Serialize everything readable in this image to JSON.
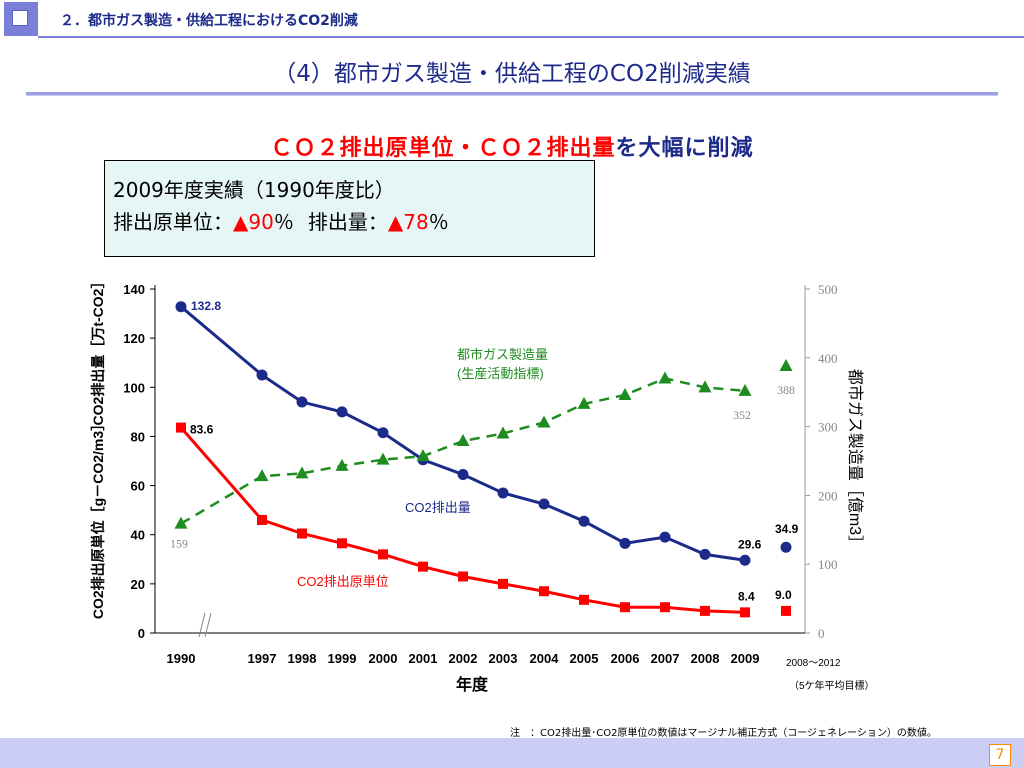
{
  "header": {
    "section_label": "２．都市ガス製造・供給工程におけるCO2削減",
    "title": "（4）都市ガス製造・供給工程のCO2削減実績"
  },
  "headline": {
    "red_text": "ＣＯ２排出原単位・ＣＯ２排出量",
    "blue_text": "を大幅に削減"
  },
  "result_box": {
    "line1": "2009年度実績（1990年度比）",
    "intensity_label": "排出原単位：",
    "intensity_mark": "▲",
    "intensity_value": "90",
    "percent1": "％",
    "emission_label": "排出量：",
    "emission_mark": "▲",
    "emission_value": "78",
    "percent2": "％"
  },
  "chart_data": {
    "type": "line",
    "x": [
      "1990",
      "1997",
      "1998",
      "1999",
      "2000",
      "2001",
      "2002",
      "2003",
      "2004",
      "2005",
      "2006",
      "2007",
      "2008",
      "2009"
    ],
    "xlabel": "年度",
    "ylabel_left_top": "CO2排出量［万t-CO2］",
    "ylabel_left_bottom": "CO2排出原単位［g－CO2/m3］",
    "ylabel_right": "都市ガス製造量［億m3］",
    "ylim_left": [
      0,
      140
    ],
    "ylim_right": [
      0,
      500
    ],
    "left_ticks": [
      "0",
      "20",
      "40",
      "60",
      "80",
      "100",
      "120",
      "140"
    ],
    "right_ticks": [
      "0",
      "100",
      "200",
      "300",
      "400",
      "500"
    ],
    "series": [
      {
        "name": "CO2排出量",
        "axis": "left",
        "color": "#1c2a8a",
        "values": [
          132.8,
          105,
          94,
          90,
          81.5,
          70.5,
          64.5,
          57,
          52.5,
          45.5,
          36.5,
          39,
          32,
          29.6
        ],
        "target": 34.9
      },
      {
        "name": "CO2排出原単位",
        "axis": "left",
        "color": "#ff0000",
        "values": [
          83.6,
          46,
          40.5,
          36.5,
          32,
          27,
          23,
          20,
          17,
          13.5,
          10.5,
          10.5,
          9,
          8.4
        ],
        "target": 9.0
      },
      {
        "name": "都市ガス製造量（生産活動指標）",
        "axis": "right",
        "color": "#1e8c1e",
        "values": [
          159,
          228,
          232,
          243,
          252,
          257,
          279,
          290,
          306,
          333,
          346,
          370,
          357,
          352
        ],
        "target": 388
      }
    ],
    "data_labels": {
      "emission_start": "132.8",
      "intensity_start": "83.6",
      "production_start": "159",
      "emission_end": "29.6",
      "emission_target": "34.9",
      "intensity_end": "8.4",
      "intensity_target": "9.0",
      "production_end": "352",
      "production_target": "388"
    },
    "legend_labels": {
      "production": "都市ガス製造量",
      "production_sub": "(生産活動指標)",
      "emission": "CO2排出量",
      "intensity": "CO2排出原単位"
    },
    "target_period": "2008～2012",
    "target_note": "（5ケ年平均目標）"
  },
  "footnote": "注　：CO2排出量･CO2原単位の数値はマージナル補正方式（コージェネレーション）の数値。",
  "page_number": "7"
}
